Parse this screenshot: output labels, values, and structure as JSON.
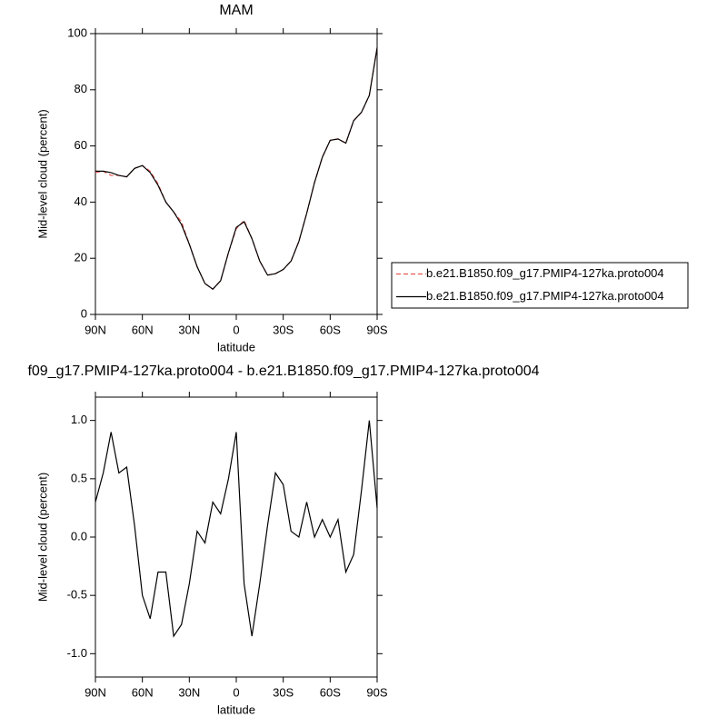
{
  "chart_data": [
    {
      "type": "line",
      "title": "MAM",
      "x_label": "latitude",
      "y_label": "Mid-level cloud (percent)",
      "x": [
        90,
        85,
        80,
        75,
        70,
        65,
        60,
        55,
        50,
        45,
        40,
        35,
        30,
        25,
        20,
        15,
        10,
        5,
        0,
        -5,
        -10,
        -15,
        -20,
        -25,
        -30,
        -35,
        -40,
        -45,
        -50,
        -55,
        -60,
        -65,
        -70,
        -75,
        -80,
        -85,
        -90
      ],
      "series": [
        {
          "name": "b.e21.B1850.f09_g17.PMIP4-127ka.proto004",
          "color": "#e8544f",
          "dash": true,
          "values": [
            50.5,
            51,
            49.5,
            49.5,
            49,
            52,
            53,
            51,
            46.5,
            40,
            36.5,
            33,
            25,
            17,
            11,
            9,
            12,
            22,
            30.5,
            33.5,
            27,
            19,
            14,
            14.5,
            16,
            19,
            26,
            36,
            47,
            56,
            62,
            62.5,
            61,
            69,
            72,
            78,
            95
          ]
        },
        {
          "name": "b.e21.B1850.f09_g17.PMIP4-127ka.proto004",
          "color": "#000000",
          "dash": false,
          "values": [
            51,
            51,
            50.5,
            49.5,
            49,
            52,
            53,
            50.5,
            46,
            40,
            36.5,
            32,
            25,
            17,
            11,
            9,
            12,
            22,
            31,
            33,
            27,
            19,
            14,
            14.5,
            16,
            19,
            26,
            36,
            47,
            56,
            62,
            62.5,
            61,
            69,
            72,
            78,
            95
          ]
        }
      ],
      "xlim": [
        90,
        -90
      ],
      "xticks": [
        {
          "value": 90,
          "label": "90N"
        },
        {
          "value": 60,
          "label": "60N"
        },
        {
          "value": 30,
          "label": "30N"
        },
        0,
        {
          "value": -30,
          "label": "30S"
        },
        {
          "value": -60,
          "label": "60S"
        },
        {
          "value": -90,
          "label": "90S"
        }
      ],
      "ylim": [
        0,
        100
      ],
      "yticks": [
        0,
        20,
        40,
        60,
        80,
        100
      ],
      "legend": "right"
    },
    {
      "type": "line",
      "title": "f09_g17.PMIP4-127ka.proto004 - b.e21.B1850.f09_g17.PMIP4-127ka.proto004",
      "x_label": "latitude",
      "y_label": "Mid-level cloud (percent)",
      "x": [
        90,
        85,
        80,
        75,
        70,
        65,
        60,
        55,
        50,
        45,
        40,
        35,
        30,
        25,
        20,
        15,
        10,
        5,
        0,
        -5,
        -10,
        -15,
        -20,
        -25,
        -30,
        -35,
        -40,
        -45,
        -50,
        -55,
        -60,
        -65,
        -70,
        -75,
        -80,
        -85,
        -90
      ],
      "series": [
        {
          "color": "#000000",
          "dash": false,
          "values": [
            0.3,
            0.55,
            0.9,
            0.55,
            0.6,
            0.1,
            -0.5,
            -0.7,
            -0.3,
            -0.3,
            -0.85,
            -0.75,
            -0.4,
            0.05,
            -0.05,
            0.3,
            0.2,
            0.5,
            0.9,
            -0.4,
            -0.85,
            -0.4,
            0.1,
            0.55,
            0.45,
            0.05,
            0.0,
            0.3,
            0.0,
            0.15,
            0.0,
            0.15,
            -0.3,
            -0.15,
            0.4,
            1.0,
            0.25
          ]
        }
      ],
      "xlim": [
        90,
        -90
      ],
      "xticks": [
        {
          "value": 90,
          "label": "90N"
        },
        {
          "value": 60,
          "label": "60N"
        },
        {
          "value": 30,
          "label": "30N"
        },
        0,
        {
          "value": -30,
          "label": "30S"
        },
        {
          "value": -60,
          "label": "60S"
        },
        {
          "value": -90,
          "label": "90S"
        }
      ],
      "ylim": [
        -1.2,
        1.2
      ],
      "yticks": [
        {
          "value": -1,
          "label": "-1.0"
        },
        -0.5,
        {
          "value": 0,
          "label": "0.0"
        },
        0.5,
        {
          "value": 1,
          "label": "1.0"
        }
      ]
    }
  ]
}
